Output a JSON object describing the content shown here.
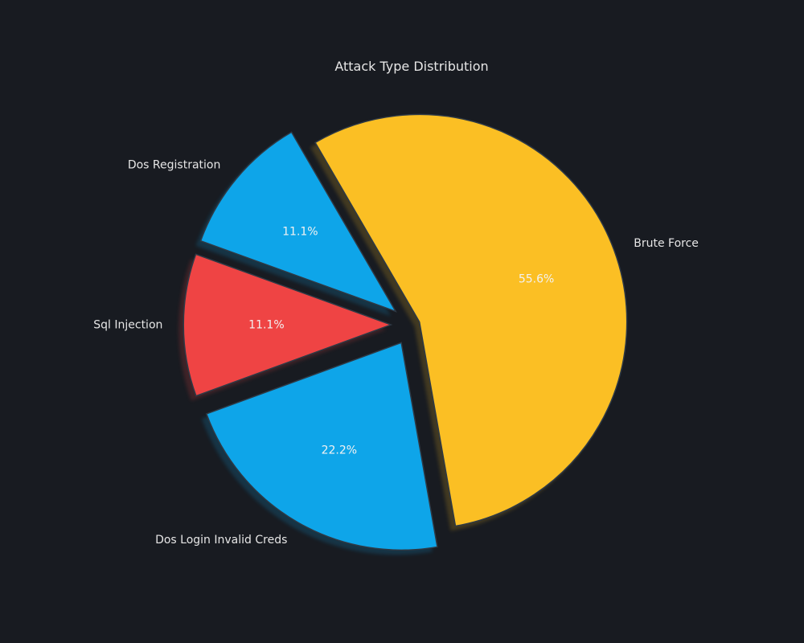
{
  "chart_data": {
    "type": "pie",
    "title": "Attack Type Distribution",
    "categories": [
      "Brute Force",
      "Dos Registration",
      "Sql Injection",
      "Dos Login Invalid Creds"
    ],
    "values": [
      55.6,
      11.1,
      11.1,
      22.2
    ],
    "percent_labels": [
      "55.6%",
      "11.1%",
      "11.1%",
      "22.2%"
    ],
    "colors": [
      "#fbbf24",
      "#0ea5e9",
      "#ef4444",
      "#0ea5e9"
    ],
    "exploded": true,
    "shadow": true,
    "start_angle_deg": -80,
    "direction": "counterclockwise"
  }
}
